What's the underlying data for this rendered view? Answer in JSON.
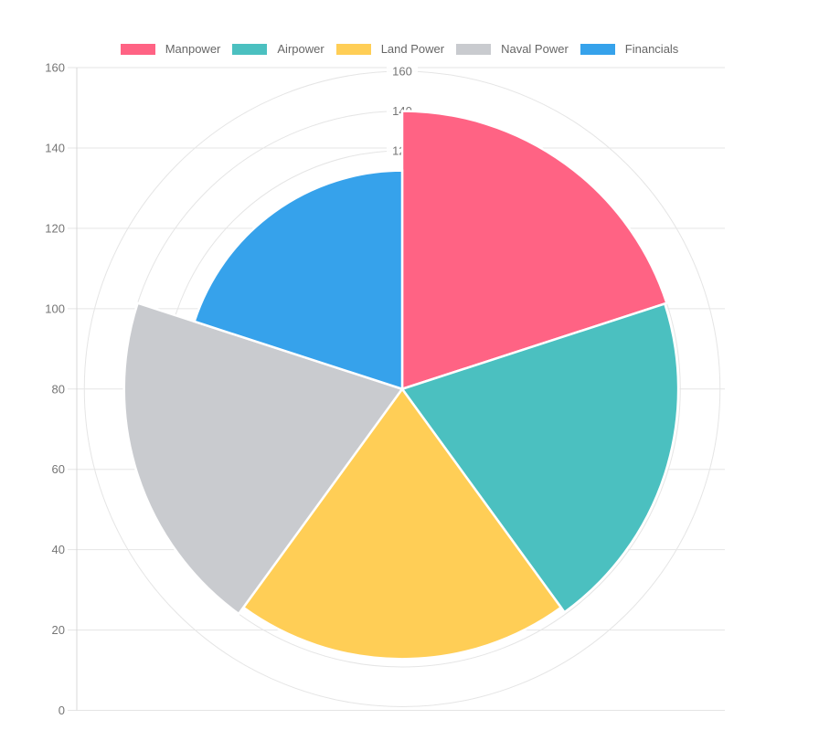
{
  "chart_data": {
    "type": "polarArea",
    "title": "",
    "categories": [
      "Manpower",
      "Airpower",
      "Land Power",
      "Naval Power",
      "Financials"
    ],
    "values": [
      140,
      139,
      136,
      140,
      110
    ],
    "colors": [
      "#FF6384",
      "#4BC0C0",
      "#FFCE56",
      "#C9CBCF",
      "#36A2EB"
    ],
    "slice_border_color": "#ffffff",
    "rlim": [
      0,
      160
    ],
    "tick_step": 20,
    "axis_tick_labels": [
      "0",
      "20",
      "40",
      "60",
      "80",
      "100",
      "120",
      "140",
      "160"
    ],
    "radial_tick_labels_visible": [
      "120",
      "140",
      "160"
    ],
    "legend_position": "top",
    "grid": true,
    "grid_color": "#e5e5e5",
    "axis_line_color": "#d8d8d8",
    "tick_color": "#757575",
    "tick_backdrop_color": "rgba(255,255,255,0.88)",
    "legend_text_color": "#666666"
  }
}
